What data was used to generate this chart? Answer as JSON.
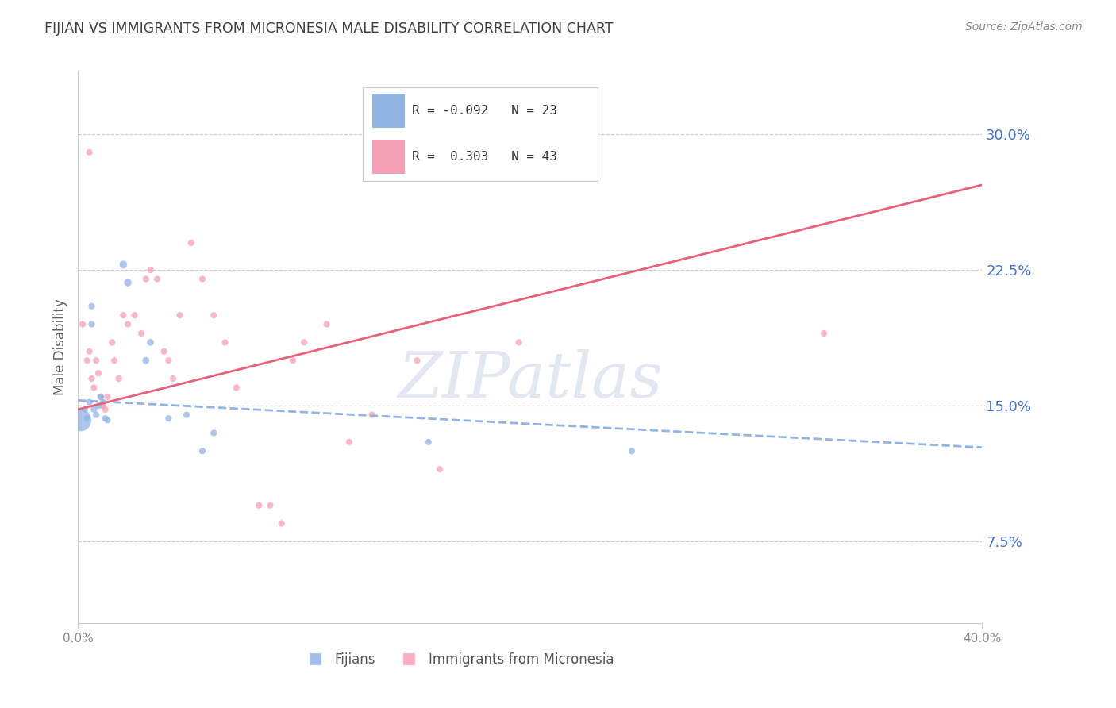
{
  "title": "FIJIAN VS IMMIGRANTS FROM MICRONESIA MALE DISABILITY CORRELATION CHART",
  "source": "Source: ZipAtlas.com",
  "ylabel": "Male Disability",
  "yticks": [
    0.075,
    0.15,
    0.225,
    0.3
  ],
  "ytick_labels": [
    "7.5%",
    "15.0%",
    "22.5%",
    "30.0%"
  ],
  "xlim": [
    0.0,
    0.4
  ],
  "ylim": [
    0.03,
    0.335
  ],
  "legend": {
    "fijian_R": "-0.092",
    "fijian_N": "23",
    "micronesia_R": "0.303",
    "micronesia_N": "43"
  },
  "fijian_color": "#92b4e3",
  "micronesia_color": "#f5a0b5",
  "fijian_scatter": {
    "x": [
      0.001,
      0.003,
      0.004,
      0.005,
      0.006,
      0.006,
      0.007,
      0.008,
      0.009,
      0.01,
      0.011,
      0.012,
      0.013,
      0.02,
      0.022,
      0.03,
      0.032,
      0.04,
      0.048,
      0.055,
      0.06,
      0.155,
      0.245
    ],
    "y": [
      0.142,
      0.148,
      0.143,
      0.152,
      0.195,
      0.205,
      0.148,
      0.145,
      0.15,
      0.155,
      0.152,
      0.143,
      0.142,
      0.228,
      0.218,
      0.175,
      0.185,
      0.143,
      0.145,
      0.125,
      0.135,
      0.13,
      0.125
    ],
    "sizes": [
      400,
      35,
      35,
      35,
      35,
      35,
      35,
      35,
      35,
      35,
      35,
      35,
      35,
      50,
      45,
      40,
      40,
      35,
      35,
      35,
      35,
      35,
      35
    ]
  },
  "micronesia_scatter": {
    "x": [
      0.002,
      0.004,
      0.005,
      0.006,
      0.007,
      0.008,
      0.009,
      0.01,
      0.011,
      0.012,
      0.013,
      0.015,
      0.016,
      0.018,
      0.02,
      0.022,
      0.025,
      0.028,
      0.03,
      0.032,
      0.035,
      0.038,
      0.04,
      0.042,
      0.045,
      0.05,
      0.055,
      0.06,
      0.065,
      0.07,
      0.08,
      0.085,
      0.09,
      0.095,
      0.1,
      0.11,
      0.12,
      0.13,
      0.15,
      0.16,
      0.195,
      0.33,
      0.005
    ],
    "y": [
      0.195,
      0.175,
      0.18,
      0.165,
      0.16,
      0.175,
      0.168,
      0.155,
      0.15,
      0.148,
      0.155,
      0.185,
      0.175,
      0.165,
      0.2,
      0.195,
      0.2,
      0.19,
      0.22,
      0.225,
      0.22,
      0.18,
      0.175,
      0.165,
      0.2,
      0.24,
      0.22,
      0.2,
      0.185,
      0.16,
      0.095,
      0.095,
      0.085,
      0.175,
      0.185,
      0.195,
      0.13,
      0.145,
      0.175,
      0.115,
      0.185,
      0.19,
      0.29
    ],
    "sizes": [
      35,
      35,
      35,
      35,
      35,
      35,
      35,
      35,
      35,
      35,
      35,
      35,
      35,
      35,
      35,
      35,
      35,
      35,
      35,
      35,
      35,
      35,
      35,
      35,
      35,
      35,
      35,
      35,
      35,
      35,
      35,
      35,
      35,
      35,
      35,
      35,
      35,
      35,
      35,
      35,
      35,
      35,
      35
    ]
  },
  "fijian_line_x": [
    0.0,
    0.4
  ],
  "fijian_line_y": [
    0.153,
    0.127
  ],
  "micronesia_line_x": [
    0.0,
    0.4
  ],
  "micronesia_line_y": [
    0.148,
    0.272
  ],
  "background_color": "#ffffff",
  "axis_color": "#4472c4",
  "grid_color": "#cccccc",
  "title_color": "#404040",
  "ylabel_color": "#606060",
  "watermark": "ZIPatlas"
}
